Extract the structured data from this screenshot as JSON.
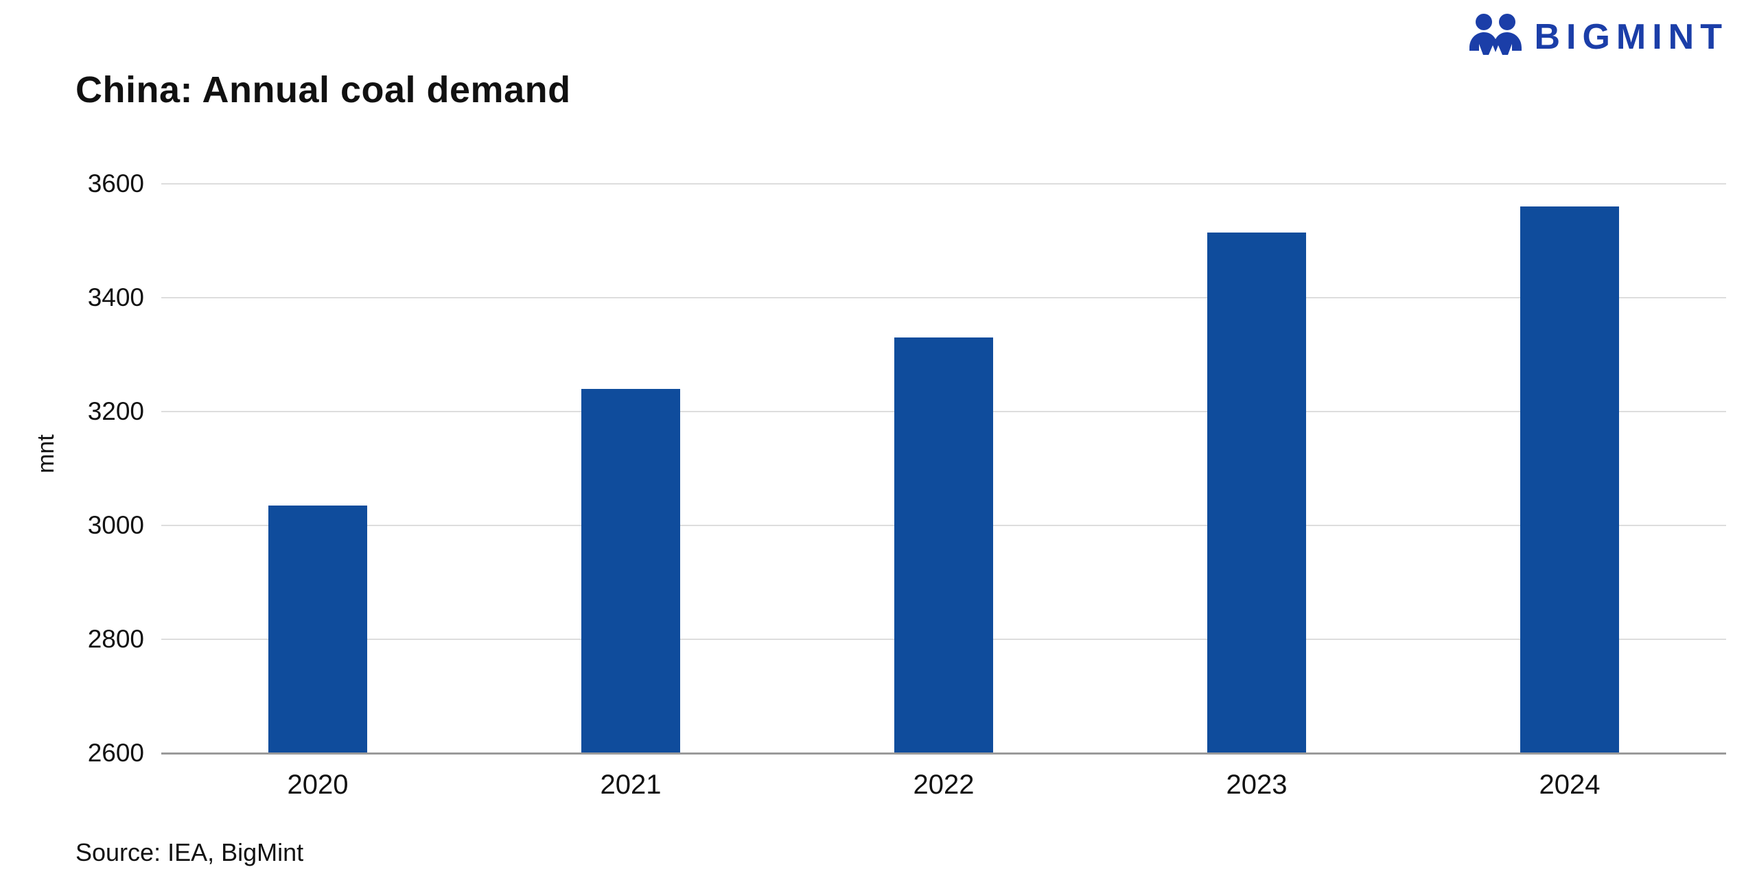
{
  "header": {
    "title": "China: Annual coal demand",
    "logo": {
      "text": "BIGMINT",
      "color": "#1b3ea8",
      "icon": "bigmint-two-people-icon"
    }
  },
  "chart_data": {
    "type": "bar",
    "title": "China: Annual coal demand",
    "categories": [
      "2020",
      "2021",
      "2022",
      "2023",
      "2024"
    ],
    "values": [
      3035,
      3240,
      3330,
      3515,
      3560
    ],
    "xlabel": "",
    "ylabel": "mnt",
    "ylim": [
      2600,
      3600
    ],
    "yticks": [
      2600,
      2800,
      3000,
      3200,
      3400,
      3600
    ],
    "bar_color": "#0f4c9c",
    "grid": true,
    "legend": false
  },
  "footer": {
    "source": "Source: IEA, BigMint"
  }
}
